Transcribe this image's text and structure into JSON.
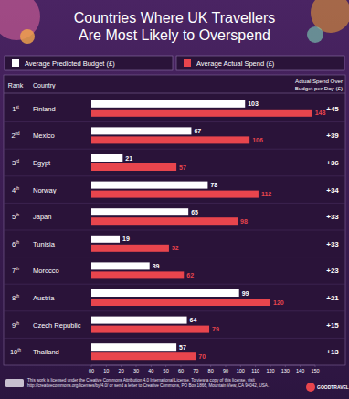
{
  "chart_data": {
    "type": "bar",
    "orientation": "horizontal",
    "title": "Countries Where UK Travellers Are Most Likely to Overspend",
    "categories": [
      "Finland",
      "Mexico",
      "Egypt",
      "Norway",
      "Japan",
      "Tunisia",
      "Morocco",
      "Austria",
      "Czech Republic",
      "Thailand"
    ],
    "ranks": [
      "1st",
      "2nd",
      "3rd",
      "4th",
      "5th",
      "6th",
      "7th",
      "8th",
      "9th",
      "10th"
    ],
    "series": [
      {
        "name": "Average Predicted Budget (£)",
        "color": "#ffffff",
        "values": [
          103,
          67,
          21,
          78,
          65,
          19,
          39,
          99,
          64,
          57
        ]
      },
      {
        "name": "Average Actual Spend (£)",
        "color": "#e8454d",
        "values": [
          148,
          106,
          57,
          112,
          98,
          52,
          62,
          120,
          79,
          70
        ]
      }
    ],
    "overspend": {
      "values": [
        45,
        39,
        36,
        34,
        33,
        33,
        23,
        21,
        15,
        13
      ],
      "value_labels": [
        "+45",
        "+39",
        "+36",
        "+34",
        "+33",
        "+33",
        "+23",
        "+21",
        "+15",
        "+13"
      ]
    },
    "column_headers": {
      "rank": "Rank",
      "country": "Country",
      "overspend": [
        "Actual Spend Over",
        "Budget per Day (£)"
      ]
    },
    "xlim": [
      0,
      150
    ],
    "xticks": [
      {
        "value": 0,
        "label": "00"
      },
      10,
      20,
      30,
      40,
      50,
      60,
      70,
      80,
      90,
      100,
      110,
      120,
      130,
      140,
      150
    ],
    "grid": false,
    "legend": "top",
    "data_labels": true,
    "footer": "This work is licensed under the Creative Commons Attribution 4.0 International License. To view a copy of this license, visit http://creativecommons.org/licenses/by/4.0/ or send a letter to Creative Commons, PO Box 1866, Mountain View, CA 94042, USA.",
    "logo": "GOODTRAVEL"
  }
}
